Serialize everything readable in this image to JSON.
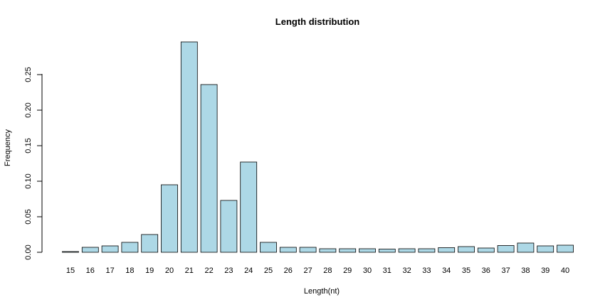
{
  "chart_data": {
    "type": "bar",
    "title": "Length distribution",
    "xlabel": "Length(nt)",
    "ylabel": "Frequency",
    "categories": [
      "15",
      "16",
      "17",
      "18",
      "19",
      "20",
      "21",
      "22",
      "23",
      "24",
      "25",
      "26",
      "27",
      "28",
      "29",
      "30",
      "31",
      "32",
      "33",
      "34",
      "35",
      "36",
      "37",
      "38",
      "39",
      "40"
    ],
    "values": [
      0.001,
      0.007,
      0.009,
      0.014,
      0.025,
      0.095,
      0.296,
      0.236,
      0.073,
      0.127,
      0.014,
      0.007,
      0.007,
      0.005,
      0.005,
      0.005,
      0.0045,
      0.005,
      0.005,
      0.0065,
      0.008,
      0.006,
      0.0095,
      0.013,
      0.009,
      0.01
    ],
    "yticks": [
      "0.00",
      "0.05",
      "0.10",
      "0.15",
      "0.20",
      "0.25"
    ],
    "ylim": [
      0,
      0.3
    ],
    "bar_color": "#add8e6",
    "grid": false,
    "legend": "none"
  }
}
